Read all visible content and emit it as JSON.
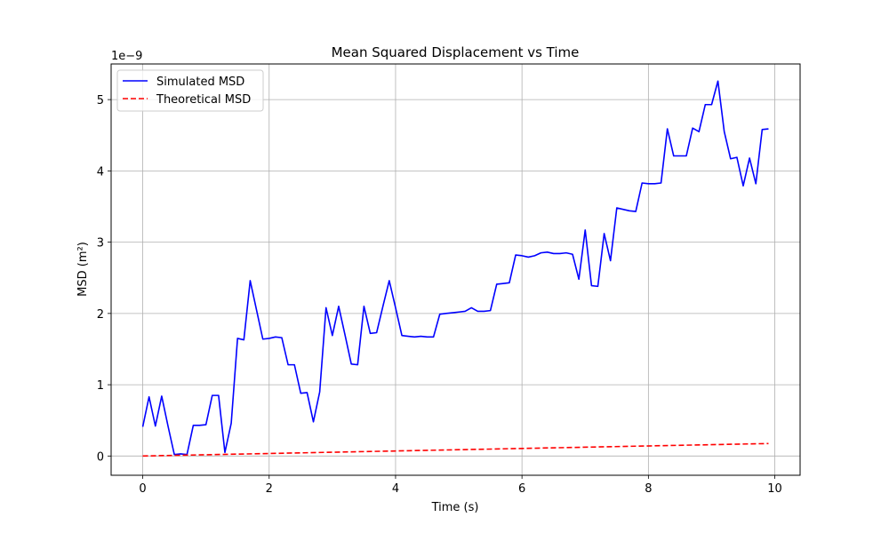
{
  "chart_data": {
    "type": "line",
    "title": "Mean Squared Displacement vs Time",
    "xlabel": "Time (s)",
    "ylabel": "MSD (m²)",
    "y_offset_label": "1e−9",
    "xlim": [
      -0.5,
      10.4
    ],
    "ylim": [
      -0.27,
      5.5
    ],
    "y_unit_multiplier": 1e-09,
    "x_ticks": [
      0,
      2,
      4,
      6,
      8,
      10
    ],
    "x_tick_labels": [
      "0",
      "2",
      "4",
      "6",
      "8",
      "10"
    ],
    "y_ticks": [
      0,
      1,
      2,
      3,
      4,
      5
    ],
    "y_tick_labels": [
      "0",
      "1",
      "2",
      "3",
      "4",
      "5"
    ],
    "grid": true,
    "legend_position": "top-left",
    "series": [
      {
        "name": "Simulated MSD",
        "color": "#0000ff",
        "style": "solid",
        "x": [
          0.0,
          0.1,
          0.2,
          0.3,
          0.4,
          0.5,
          0.6,
          0.7,
          0.8,
          0.9,
          1.0,
          1.1,
          1.2,
          1.3,
          1.4,
          1.5,
          1.6,
          1.7,
          1.8,
          1.9,
          2.0,
          2.1,
          2.2,
          2.3,
          2.4,
          2.5,
          2.6,
          2.7,
          2.8,
          2.9,
          3.0,
          3.1,
          3.2,
          3.3,
          3.4,
          3.5,
          3.6,
          3.7,
          3.8,
          3.9,
          4.0,
          4.1,
          4.2,
          4.3,
          4.4,
          4.5,
          4.6,
          4.7,
          4.8,
          4.9,
          5.0,
          5.1,
          5.2,
          5.3,
          5.4,
          5.5,
          5.6,
          5.7,
          5.8,
          5.9,
          6.0,
          6.1,
          6.2,
          6.3,
          6.4,
          6.5,
          6.6,
          6.7,
          6.8,
          6.9,
          7.0,
          7.1,
          7.2,
          7.3,
          7.4,
          7.5,
          7.6,
          7.7,
          7.8,
          7.9,
          8.0,
          8.1,
          8.2,
          8.3,
          8.4,
          8.5,
          8.6,
          8.7,
          8.8,
          8.9,
          9.0,
          9.1,
          9.2,
          9.3,
          9.4,
          9.5,
          9.6,
          9.7,
          9.8,
          9.9
        ],
        "y": [
          0.41,
          0.83,
          0.42,
          0.84,
          0.42,
          0.02,
          0.03,
          0.02,
          0.43,
          0.43,
          0.44,
          0.85,
          0.85,
          0.05,
          0.46,
          1.65,
          1.63,
          2.46,
          2.05,
          1.64,
          1.65,
          1.67,
          1.66,
          1.28,
          1.28,
          0.88,
          0.89,
          0.48,
          0.9,
          2.08,
          1.69,
          2.1,
          1.7,
          1.29,
          1.28,
          2.1,
          1.72,
          1.73,
          2.1,
          2.46,
          2.08,
          1.69,
          1.68,
          1.67,
          1.68,
          1.67,
          1.67,
          1.99,
          2.0,
          2.01,
          2.02,
          2.03,
          2.08,
          2.03,
          2.03,
          2.04,
          2.41,
          2.42,
          2.43,
          2.82,
          2.81,
          2.79,
          2.81,
          2.85,
          2.86,
          2.84,
          2.84,
          2.85,
          2.83,
          2.48,
          3.17,
          2.39,
          2.38,
          3.12,
          2.74,
          3.48,
          3.46,
          3.44,
          3.43,
          3.83,
          3.82,
          3.82,
          3.83,
          4.59,
          4.21,
          4.21,
          4.21,
          4.6,
          4.55,
          4.93,
          4.93,
          5.26,
          4.55,
          4.17,
          4.19,
          3.79,
          4.18,
          3.82,
          4.58,
          4.59
        ]
      },
      {
        "name": "Theoretical MSD",
        "color": "#ff0000",
        "style": "dashed",
        "x": [
          0.0,
          9.9
        ],
        "y": [
          0.0,
          0.175
        ]
      }
    ]
  }
}
